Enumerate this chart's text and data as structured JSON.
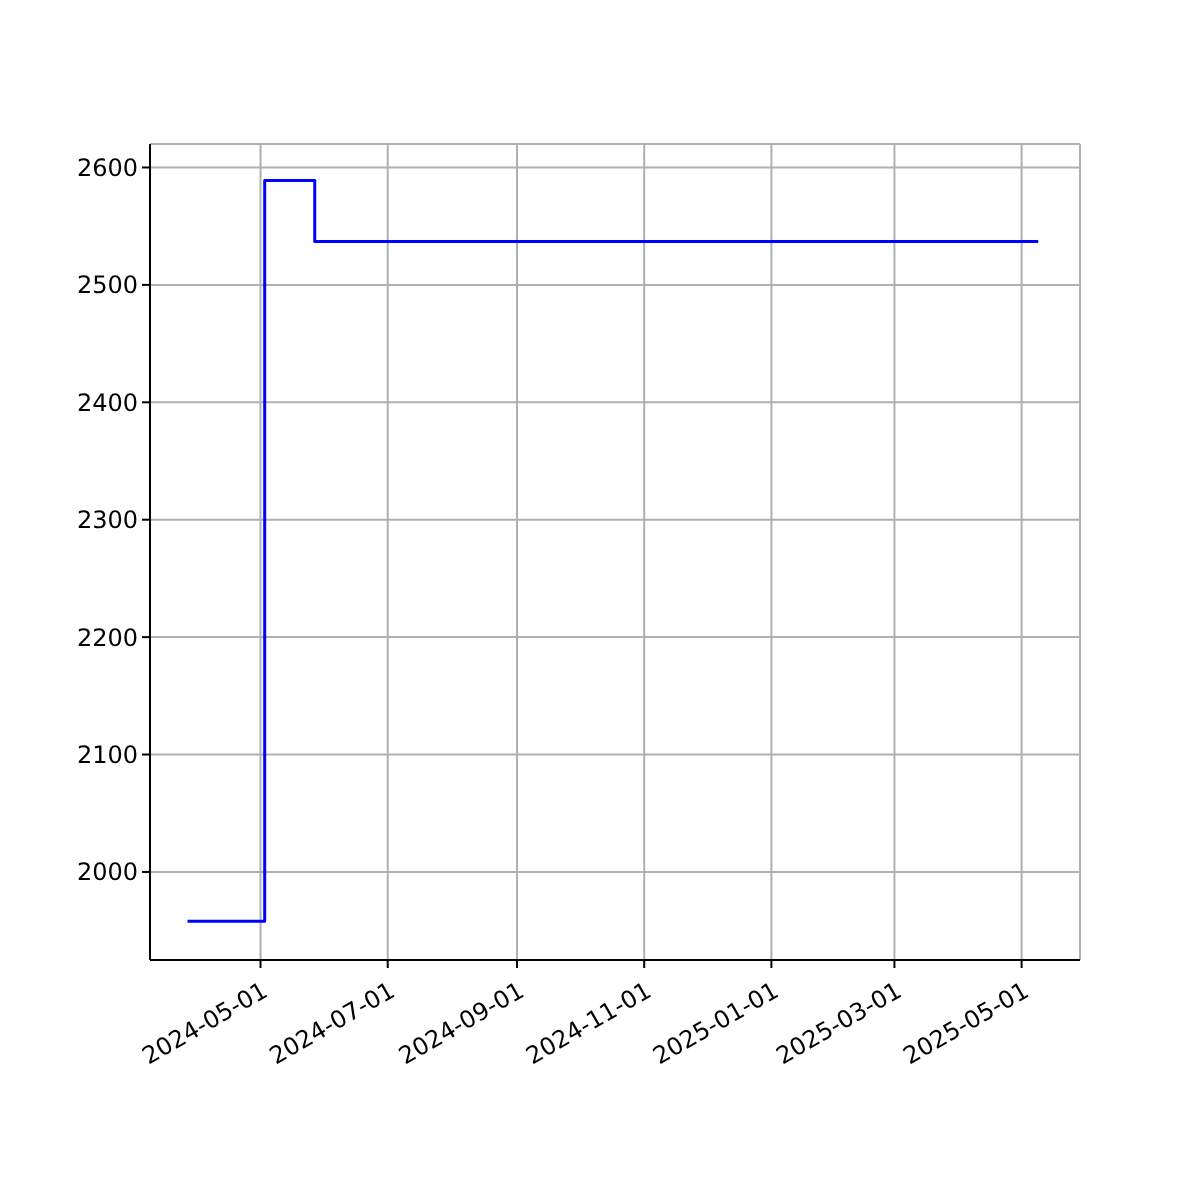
{
  "chart_data": {
    "type": "step",
    "x": [
      "2024-03-27",
      "2024-05-03",
      "2024-05-27",
      "2025-05-09"
    ],
    "series": [
      {
        "color": "#0000ff",
        "values": [
          1958,
          2589,
          2537,
          2537
        ]
      }
    ],
    "xlim": [
      "2024-03-09",
      "2025-05-29"
    ],
    "xticks": [
      "2024-05-01",
      "2024-07-01",
      "2024-09-01",
      "2024-11-01",
      "2025-01-01",
      "2025-03-01",
      "2025-05-01"
    ],
    "ylim": [
      1925,
      2620
    ],
    "yticks": [
      2000,
      2100,
      2200,
      2300,
      2400,
      2500,
      2600
    ],
    "grid": true,
    "marker": "none",
    "line_style": "solid"
  }
}
